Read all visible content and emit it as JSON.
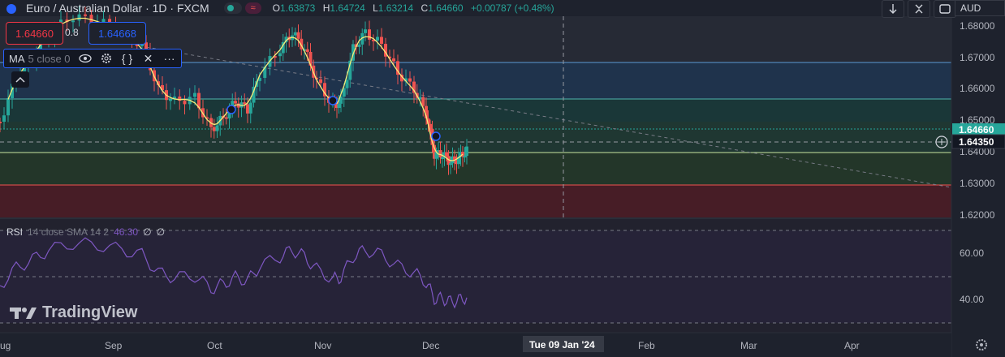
{
  "header": {
    "symbol": "Euro / Australian Dollar · 1D · FXCM",
    "ohlc": [
      {
        "k": "O",
        "v": "1.63873"
      },
      {
        "k": "H",
        "v": "1.64724"
      },
      {
        "k": "L",
        "v": "1.63214"
      },
      {
        "k": "C",
        "v": "1.64660"
      }
    ],
    "change": "+0.00787 (+0.48%)"
  },
  "trade": {
    "sell": "1.64660",
    "spread": "0.8",
    "buy": "1.64668"
  },
  "ma": {
    "name": "MA",
    "params": "5 close 0"
  },
  "rsi": {
    "name": "RSI",
    "params": "14 close SMA 14 2",
    "value": "46.30",
    "extra1": "∅",
    "extra2": "∅"
  },
  "currency": "AUD",
  "logo": "TradingView",
  "price_axis": {
    "labels": [
      "1.68000",
      "1.67000",
      "1.66000",
      "1.65000",
      "1.64000",
      "1.63000",
      "1.62000"
    ],
    "current_price": "1.64660",
    "crosshair_price": "1.64350",
    "rsi_labels": [
      "60.00",
      "40.00"
    ]
  },
  "time_axis": {
    "labels": [
      "ug",
      "Sep",
      "Oct",
      "Nov",
      "Dec",
      "Feb",
      "Mar",
      "Apr"
    ],
    "crosshair_date": "Tue 09 Jan '24"
  },
  "colors": {
    "up": "#26a69a",
    "down": "#ef5350",
    "ma": "#f7ec7a",
    "rsi": "#7e57c2",
    "bg": "#1e222d"
  }
}
